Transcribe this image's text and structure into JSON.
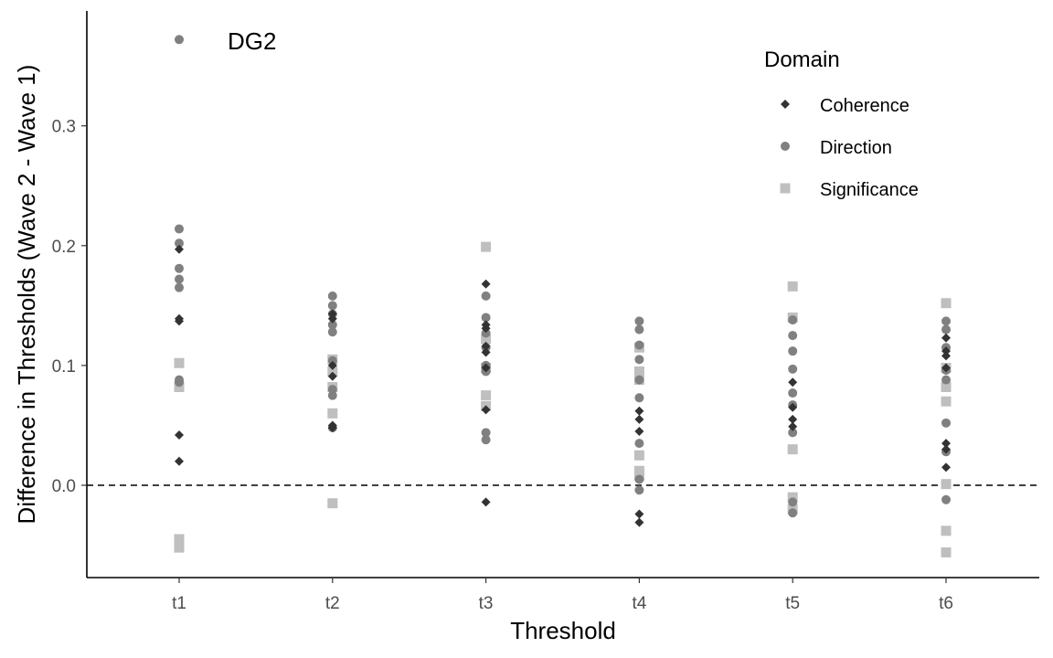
{
  "chart_data": {
    "type": "scatter",
    "title": "",
    "xlabel": "Threshold",
    "ylabel": "Difference in Thresholds (Wave 2 - Wave 1)",
    "categories": [
      "t1",
      "t2",
      "t3",
      "t4",
      "t5",
      "t6"
    ],
    "ylim": [
      -0.077,
      0.395
    ],
    "yticks": [
      0.0,
      0.1,
      0.2,
      0.3
    ],
    "ytick_labels": [
      "0.0",
      "0.1",
      "0.2",
      "0.3"
    ],
    "reference_line": {
      "y": 0,
      "style": "dashed"
    },
    "grid": false,
    "annotation": {
      "text": "DG2",
      "x": "t1",
      "y": 0.372
    },
    "legend": {
      "title": "Domain",
      "position": "top-right"
    },
    "series": [
      {
        "name": "Coherence",
        "marker": "diamond",
        "color": "#333333",
        "points": [
          [
            "t1",
            0.197
          ],
          [
            "t1",
            0.139
          ],
          [
            "t1",
            0.137
          ],
          [
            "t1",
            0.042
          ],
          [
            "t1",
            0.02
          ],
          [
            "t2",
            0.143
          ],
          [
            "t2",
            0.139
          ],
          [
            "t2",
            0.1
          ],
          [
            "t2",
            0.091
          ],
          [
            "t2",
            0.05
          ],
          [
            "t2",
            0.048
          ],
          [
            "t3",
            0.168
          ],
          [
            "t3",
            0.134
          ],
          [
            "t3",
            0.131
          ],
          [
            "t3",
            0.116
          ],
          [
            "t3",
            0.111
          ],
          [
            "t3",
            0.098
          ],
          [
            "t3",
            0.063
          ],
          [
            "t3",
            -0.014
          ],
          [
            "t4",
            0.062
          ],
          [
            "t4",
            0.055
          ],
          [
            "t4",
            0.045
          ],
          [
            "t4",
            -0.024
          ],
          [
            "t4",
            -0.031
          ],
          [
            "t5",
            0.086
          ],
          [
            "t5",
            0.065
          ],
          [
            "t5",
            0.055
          ],
          [
            "t5",
            0.049
          ],
          [
            "t6",
            0.123
          ],
          [
            "t6",
            0.112
          ],
          [
            "t6",
            0.108
          ],
          [
            "t6",
            0.098
          ],
          [
            "t6",
            0.035
          ],
          [
            "t6",
            0.03
          ],
          [
            "t6",
            0.015
          ]
        ]
      },
      {
        "name": "Direction",
        "marker": "circle",
        "color": "#808080",
        "points": [
          [
            "t1",
            0.372
          ],
          [
            "t1",
            0.214
          ],
          [
            "t1",
            0.202
          ],
          [
            "t1",
            0.181
          ],
          [
            "t1",
            0.172
          ],
          [
            "t1",
            0.165
          ],
          [
            "t1",
            0.088
          ],
          [
            "t1",
            0.086
          ],
          [
            "t2",
            0.158
          ],
          [
            "t2",
            0.15
          ],
          [
            "t2",
            0.143
          ],
          [
            "t2",
            0.134
          ],
          [
            "t2",
            0.128
          ],
          [
            "t2",
            0.104
          ],
          [
            "t2",
            0.08
          ],
          [
            "t2",
            0.075
          ],
          [
            "t2",
            0.048
          ],
          [
            "t3",
            0.158
          ],
          [
            "t3",
            0.14
          ],
          [
            "t3",
            0.127
          ],
          [
            "t3",
            0.115
          ],
          [
            "t3",
            0.1
          ],
          [
            "t3",
            0.095
          ],
          [
            "t3",
            0.044
          ],
          [
            "t3",
            0.038
          ],
          [
            "t4",
            0.137
          ],
          [
            "t4",
            0.13
          ],
          [
            "t4",
            0.117
          ],
          [
            "t4",
            0.105
          ],
          [
            "t4",
            0.088
          ],
          [
            "t4",
            0.073
          ],
          [
            "t4",
            0.035
          ],
          [
            "t4",
            0.005
          ],
          [
            "t4",
            -0.004
          ],
          [
            "t5",
            0.138
          ],
          [
            "t5",
            0.125
          ],
          [
            "t5",
            0.112
          ],
          [
            "t5",
            0.097
          ],
          [
            "t5",
            0.077
          ],
          [
            "t5",
            0.067
          ],
          [
            "t5",
            0.044
          ],
          [
            "t5",
            -0.014
          ],
          [
            "t5",
            -0.023
          ],
          [
            "t6",
            0.137
          ],
          [
            "t6",
            0.13
          ],
          [
            "t6",
            0.115
          ],
          [
            "t6",
            0.096
          ],
          [
            "t6",
            0.088
          ],
          [
            "t6",
            0.052
          ],
          [
            "t6",
            0.028
          ],
          [
            "t6",
            -0.012
          ]
        ]
      },
      {
        "name": "Significance",
        "marker": "square",
        "color": "#bfbfbf",
        "points": [
          [
            "t1",
            0.102
          ],
          [
            "t1",
            0.082
          ],
          [
            "t1",
            -0.045
          ],
          [
            "t1",
            -0.052
          ],
          [
            "t2",
            0.105
          ],
          [
            "t2",
            0.095
          ],
          [
            "t2",
            0.082
          ],
          [
            "t2",
            0.06
          ],
          [
            "t2",
            -0.015
          ],
          [
            "t3",
            0.199
          ],
          [
            "t3",
            0.122
          ],
          [
            "t3",
            0.098
          ],
          [
            "t3",
            0.075
          ],
          [
            "t3",
            0.066
          ],
          [
            "t4",
            0.115
          ],
          [
            "t4",
            0.095
          ],
          [
            "t4",
            0.088
          ],
          [
            "t4",
            0.025
          ],
          [
            "t4",
            0.012
          ],
          [
            "t4",
            0.008
          ],
          [
            "t5",
            0.166
          ],
          [
            "t5",
            0.14
          ],
          [
            "t5",
            0.03
          ],
          [
            "t5",
            -0.01
          ],
          [
            "t5",
            -0.02
          ],
          [
            "t6",
            0.152
          ],
          [
            "t6",
            0.098
          ],
          [
            "t6",
            0.082
          ],
          [
            "t6",
            0.07
          ],
          [
            "t6",
            0.001
          ],
          [
            "t6",
            -0.038
          ],
          [
            "t6",
            -0.056
          ]
        ]
      }
    ]
  }
}
